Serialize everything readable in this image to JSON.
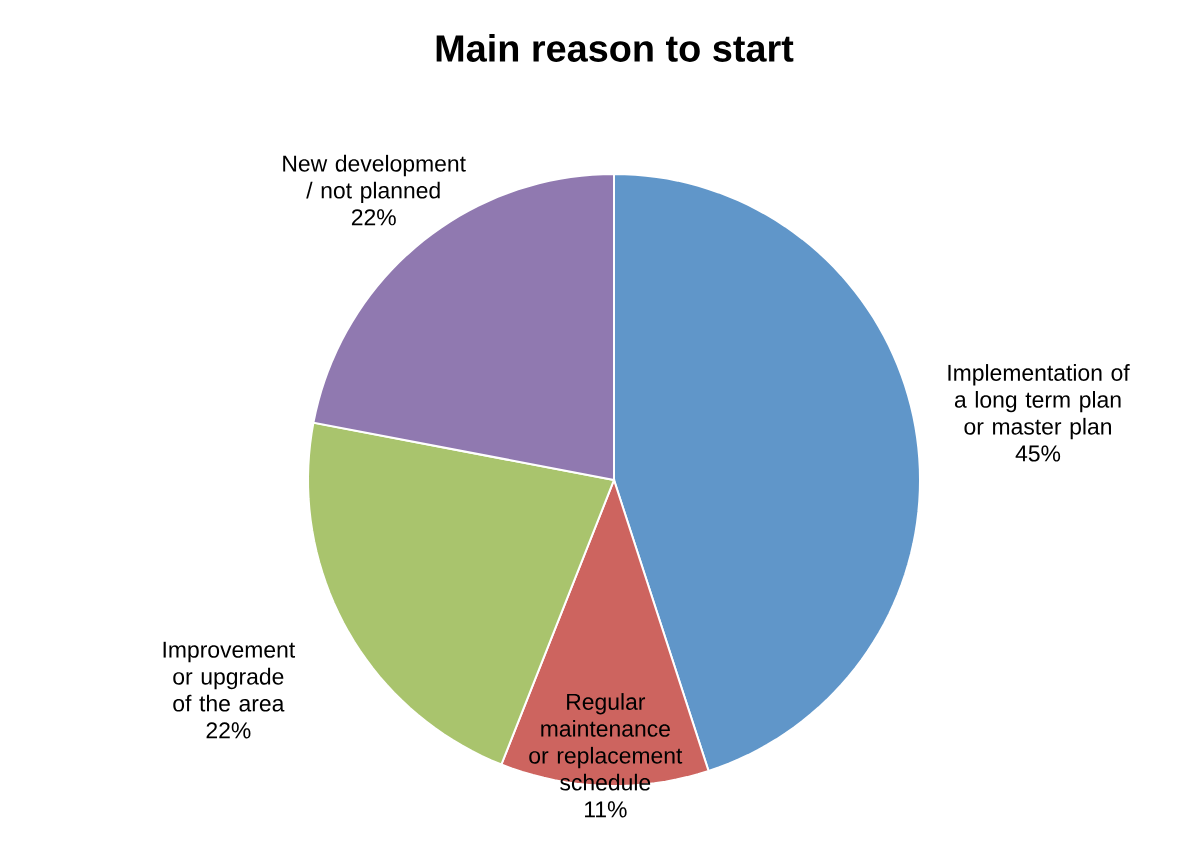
{
  "chart_data": {
    "type": "pie",
    "title": "Main reason to start",
    "categories": [
      "Implementation of a long term plan or master plan",
      "Regular maintenance or replacement schedule",
      "Improvement or upgrade of the area",
      "New development / not planned"
    ],
    "values": [
      45,
      11,
      22,
      22
    ],
    "colors": [
      "#6096c9",
      "#cd645f",
      "#a9c46d",
      "#9079b0"
    ],
    "value_labels": [
      "45%",
      "11%",
      "22%",
      "22%"
    ]
  }
}
